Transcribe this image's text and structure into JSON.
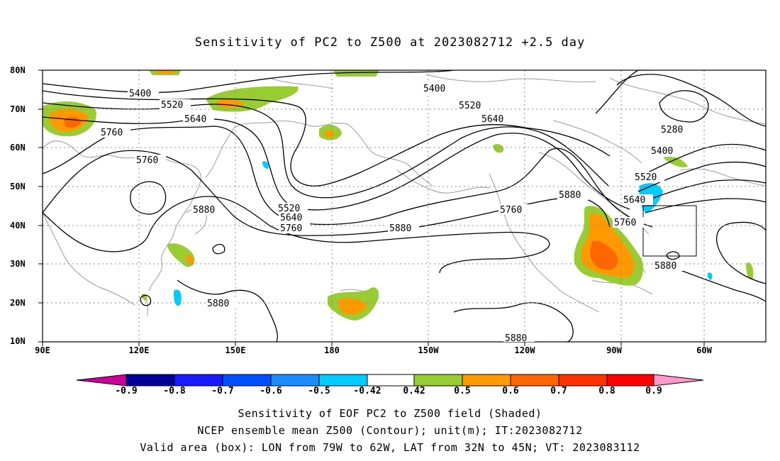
{
  "title": "Sensitivity of PC2 to Z500 at 2023082712 +2.5 day",
  "lat_labels": [
    "80N",
    "70N",
    "60N",
    "50N",
    "40N",
    "30N",
    "20N",
    "10N"
  ],
  "lon_labels": [
    "90E",
    "120E",
    "150E",
    "180",
    "150W",
    "120W",
    "90W",
    "60W"
  ],
  "contour_labels": [
    "5400",
    "5520",
    "5640",
    "5760",
    "5760",
    "5880",
    "5520",
    "5640",
    "5760",
    "5880",
    "5400",
    "5520",
    "5640",
    "5760",
    "5880",
    "5280",
    "5400",
    "5520",
    "5640",
    "5760",
    "5880",
    "5880",
    "5880"
  ],
  "colorbar": {
    "labels": [
      "-0.9",
      "-0.8",
      "-0.7",
      "-0.6",
      "-0.5",
      "-0.42",
      "0.42",
      "0.5",
      "0.6",
      "0.7",
      "0.8",
      "0.9"
    ],
    "colors": [
      "#000099",
      "#1a1aff",
      "#0050ff",
      "#1a8cff",
      "#00ccff",
      "#ffffff",
      "#99cc33",
      "#ff9900",
      "#ff6600",
      "#ff3300",
      "#ff0000"
    ],
    "low_extend_color": "#cc0099",
    "high_extend_color": "#ff99cc"
  },
  "captions": {
    "line1": "Sensitivity of EOF PC2 to Z500 field (Shaded)",
    "line2": "NCEP ensemble mean Z500 (Contour); unit(m); IT:2023082712",
    "line3": "Valid area (box): LON from 79W to 62W, LAT from 32N to 45N; VT: 2023083112"
  },
  "valid_box": {
    "lon_min": -79,
    "lon_max": -62,
    "lat_min": 32,
    "lat_max": 45
  }
}
